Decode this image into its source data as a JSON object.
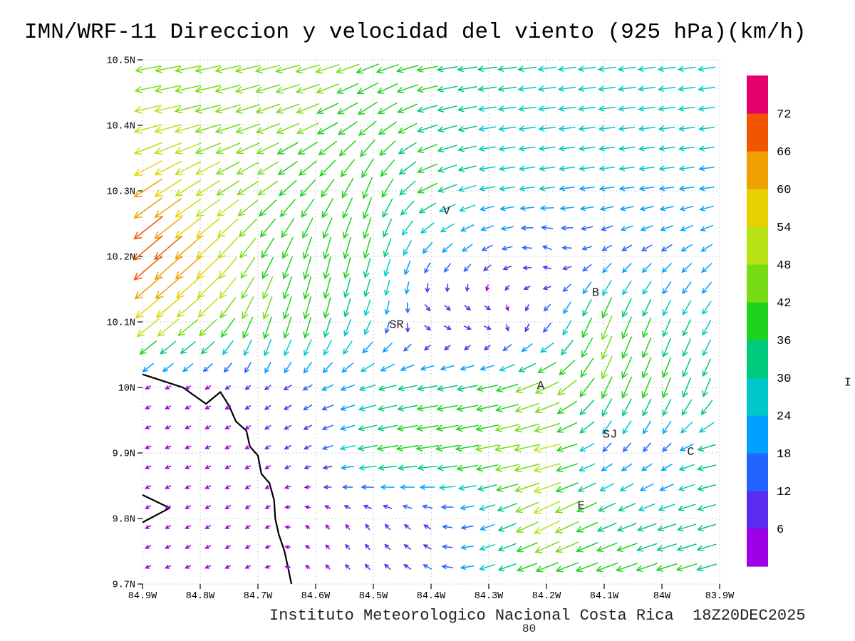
{
  "title": "IMN/WRF-11 Direccion y velocidad del viento (925 hPa)(km/h)",
  "footer": {
    "credit": "Instituto Meteorologico Nacional Costa Rica  18Z20DEC2025",
    "stray": "80"
  },
  "axes": {
    "x": {
      "ticks": [
        84.9,
        84.8,
        84.7,
        84.6,
        84.5,
        84.4,
        84.3,
        84.2,
        84.1,
        84.0,
        83.9
      ],
      "labels": [
        "84.9W",
        "84.8W",
        "84.7W",
        "84.6W",
        "84.5W",
        "84.4W",
        "84.3W",
        "84.2W",
        "84.1W",
        "84W",
        "83.9W"
      ]
    },
    "y": {
      "ticks": [
        10.5,
        10.4,
        10.3,
        10.2,
        10.1,
        10.0,
        9.9,
        9.8,
        9.7
      ],
      "labels": [
        "10.5N",
        "10.4N",
        "10.3N",
        "10.2N",
        "10.1N",
        "10N",
        "9.9N",
        "9.8N",
        "9.7N"
      ]
    }
  },
  "stations": [
    {
      "name": "V",
      "lon": 84.373,
      "lat": 10.27
    },
    {
      "name": "B",
      "lon": 84.115,
      "lat": 10.145
    },
    {
      "name": "SR",
      "lon": 84.46,
      "lat": 10.096
    },
    {
      "name": "A",
      "lon": 84.21,
      "lat": 10.003
    },
    {
      "name": "SJ",
      "lon": 84.09,
      "lat": 9.929
    },
    {
      "name": "C",
      "lon": 83.95,
      "lat": 9.902
    },
    {
      "name": "E",
      "lon": 84.14,
      "lat": 9.82
    },
    {
      "name": "I",
      "lon": 83.678,
      "lat": 10.008
    }
  ],
  "coastline": [
    [
      [
        84.9,
        10.02
      ],
      [
        84.83,
        10.0
      ],
      [
        84.79,
        9.975
      ],
      [
        84.765,
        9.993
      ],
      [
        84.75,
        9.972
      ],
      [
        84.738,
        9.948
      ],
      [
        84.72,
        9.934
      ],
      [
        84.714,
        9.91
      ],
      [
        84.7,
        9.896
      ],
      [
        84.694,
        9.868
      ],
      [
        84.68,
        9.854
      ],
      [
        84.672,
        9.828
      ],
      [
        84.67,
        9.8
      ],
      [
        84.664,
        9.776
      ],
      [
        84.654,
        9.75
      ],
      [
        84.647,
        9.722
      ],
      [
        84.642,
        9.7
      ]
    ],
    [
      [
        84.9,
        9.836
      ],
      [
        84.853,
        9.816
      ],
      [
        84.9,
        9.794
      ]
    ]
  ],
  "chart_data": {
    "type": "quiver",
    "title": "IMN/WRF-11 Direccion y velocidad del viento (925 hPa)(km/h)",
    "variable": "wind direction and speed",
    "level_hPa": 925,
    "units": "km/h",
    "valid_time": "18Z20DEC2025",
    "lon_range_W": [
      84.9,
      83.9
    ],
    "lat_range_N": [
      9.7,
      10.5
    ],
    "grid_on": true,
    "legend_position": "right-colorbar",
    "speed_levels_kmh": [
      6,
      12,
      18,
      24,
      30,
      36,
      42,
      48,
      54,
      60,
      66,
      72
    ],
    "palette": [
      "#a000e6",
      "#5a2bf0",
      "#2364ff",
      "#00a0ff",
      "#00c8c8",
      "#00c87d",
      "#1ed21e",
      "#78dc14",
      "#b9e214",
      "#e6d200",
      "#f0a000",
      "#f05500",
      "#e6006e"
    ],
    "grid_lons_W": [
      84.9,
      84.8,
      84.7,
      84.6,
      84.5,
      84.4,
      84.3,
      84.2,
      84.1,
      84.0,
      83.9
    ],
    "grid_lats_N": [
      10.5,
      10.4,
      10.3,
      10.2,
      10.1,
      10.0,
      9.9,
      9.8,
      9.7
    ],
    "u_kmh": [
      [
        -44,
        -45,
        -43,
        -42,
        -40,
        -36,
        -32,
        -30,
        -29,
        -29,
        -28
      ],
      [
        -50,
        -46,
        -42,
        -38,
        -30,
        -34,
        -28,
        -27,
        -26,
        -26,
        -25
      ],
      [
        -52,
        -44,
        -36,
        -24,
        -14,
        -35,
        -25,
        -24,
        -23,
        -23,
        -23
      ],
      [
        -55,
        -46,
        -22,
        -10,
        -9,
        -12,
        -14,
        -10,
        -12,
        -14,
        -16
      ],
      [
        -44,
        -36,
        -14,
        -10,
        -8,
        12,
        12,
        -8,
        -18,
        -12,
        -14
      ],
      [
        -5,
        -5,
        -5,
        -14,
        -28,
        -34,
        -36,
        -42,
        -18,
        -14,
        -12
      ],
      [
        -5,
        -5,
        -5,
        -8,
        -36,
        -40,
        -42,
        -48,
        -12,
        -10,
        -38
      ],
      [
        -5,
        -5,
        -4,
        -3,
        -4,
        -8,
        -22,
        -48,
        -32,
        -30,
        -30
      ],
      [
        -5,
        -5,
        -4,
        -3,
        -6,
        -12,
        -26,
        -36,
        -40,
        -38,
        -34
      ]
    ],
    "v_kmh": [
      [
        -8,
        -9,
        -10,
        -12,
        -14,
        -6,
        -4,
        -4,
        -4,
        -4,
        -4
      ],
      [
        -12,
        -12,
        -15,
        -18,
        -25,
        -10,
        -4,
        -3,
        -3,
        -3,
        -3
      ],
      [
        -35,
        -28,
        -24,
        -30,
        -38,
        -15,
        -4,
        -3,
        -3,
        -3,
        -3
      ],
      [
        -48,
        -42,
        -36,
        -40,
        -35,
        -16,
        -8,
        6,
        -8,
        -10,
        -12
      ],
      [
        -36,
        -30,
        -42,
        -38,
        -22,
        -4,
        -3,
        -12,
        -44,
        -30,
        -22
      ],
      [
        -3,
        -3,
        -4,
        -8,
        -8,
        -6,
        -8,
        -20,
        -38,
        -36,
        -30
      ],
      [
        -2,
        -2,
        -3,
        -4,
        -6,
        -6,
        -8,
        -10,
        -10,
        -10,
        -6
      ],
      [
        -3,
        -3,
        -3,
        3,
        6,
        5,
        -8,
        -24,
        -14,
        -10,
        -8
      ],
      [
        -2,
        -2,
        -2,
        3,
        6,
        6,
        -8,
        -12,
        -14,
        -12,
        -10
      ]
    ]
  }
}
